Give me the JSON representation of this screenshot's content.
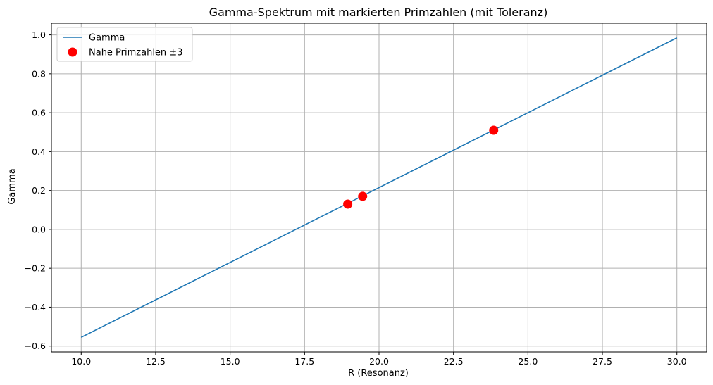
{
  "chart_data": {
    "type": "line",
    "title": "Gamma-Spektrum mit markierten Primzahlen (mit Toleranz)",
    "xlabel": "R (Resonanz)",
    "ylabel": "Gamma",
    "xlim": [
      9.0,
      31.0
    ],
    "ylim": [
      -0.63,
      1.06
    ],
    "x_ticks": [
      10.0,
      12.5,
      15.0,
      17.5,
      20.0,
      22.5,
      25.0,
      27.5,
      30.0
    ],
    "x_tick_labels": [
      "10.0",
      "12.5",
      "15.0",
      "17.5",
      "20.0",
      "22.5",
      "25.0",
      "27.5",
      "30.0"
    ],
    "y_ticks": [
      -0.6,
      -0.4,
      -0.2,
      0.0,
      0.2,
      0.4,
      0.6,
      0.8,
      1.0
    ],
    "y_tick_labels": [
      "−0.6",
      "−0.4",
      "−0.2",
      "0.0",
      "0.2",
      "0.4",
      "0.6",
      "0.8",
      "1.0"
    ],
    "grid": true,
    "legend_position": "top-left",
    "series": [
      {
        "name": "Gamma",
        "kind": "line",
        "color": "#1f77b4",
        "x": [
          10.0,
          30.0
        ],
        "y": [
          -0.555,
          0.985
        ]
      },
      {
        "name": "Nahe Primzahlen ±3",
        "kind": "scatter",
        "color": "#ff0000",
        "x": [
          18.95,
          19.45,
          23.85
        ],
        "y": [
          0.13,
          0.17,
          0.51
        ]
      }
    ]
  }
}
